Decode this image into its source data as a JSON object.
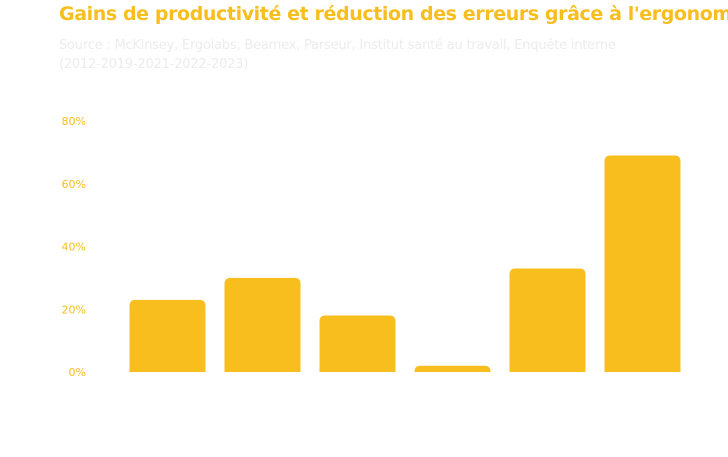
{
  "title": "Gains de productivité et réduction des erreurs grâce à l'ergonomie",
  "subtitle": "Source : McKinsey, Ergolabs, Beamex, Parseur, Institut santé au travail, Enquête interne (2012-2019-2021-2022-2023)",
  "colors": {
    "accent": "#F7BE1E",
    "subtitle": "#ECECEC",
    "background": "#FFFFFF"
  },
  "chart_data": {
    "type": "bar",
    "title": "Gains de productivité et réduction des erreurs grâce à l'ergonomie",
    "subtitle": "Source : McKinsey, Ergolabs, Beamex, Parseur, Institut santé au travail, Enquête interne (2012-2019-2021-2022-2023)",
    "xlabel": "",
    "ylabel": "",
    "categories": [
      "",
      "",
      "",
      "",
      "",
      ""
    ],
    "values": [
      23,
      30,
      18,
      2,
      33,
      69
    ],
    "ylim": [
      0,
      80
    ],
    "yticks": [
      0,
      20,
      40,
      60,
      80
    ],
    "ytick_labels": [
      "0%",
      "20%",
      "40%",
      "60%",
      "80%"
    ],
    "grid": false,
    "legend": "none",
    "bar_color": "#F7BE1E"
  }
}
